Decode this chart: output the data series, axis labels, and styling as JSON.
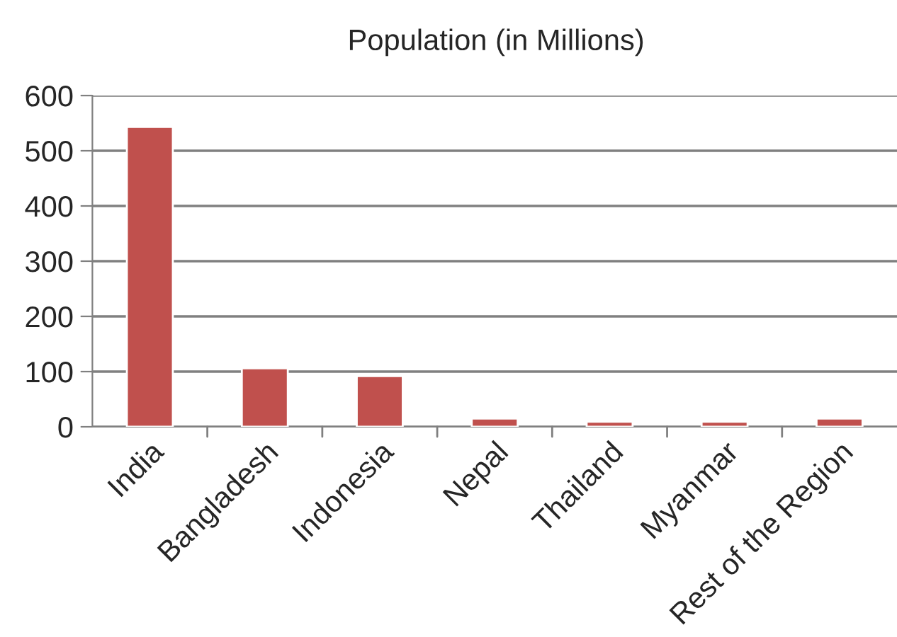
{
  "chart_data": {
    "type": "bar",
    "title": "Population (in Millions)",
    "categories": [
      "India",
      "Bangladesh",
      "Indonesia",
      "Nepal",
      "Thailand",
      "Myanmar",
      "Rest of the Region"
    ],
    "values": [
      543,
      106,
      92,
      15,
      9,
      9,
      15
    ],
    "color": "#c0504d",
    "ylim": [
      0,
      600
    ],
    "yticks": [
      0,
      100,
      200,
      300,
      400,
      500,
      600
    ],
    "grid": "y",
    "legend": false
  }
}
